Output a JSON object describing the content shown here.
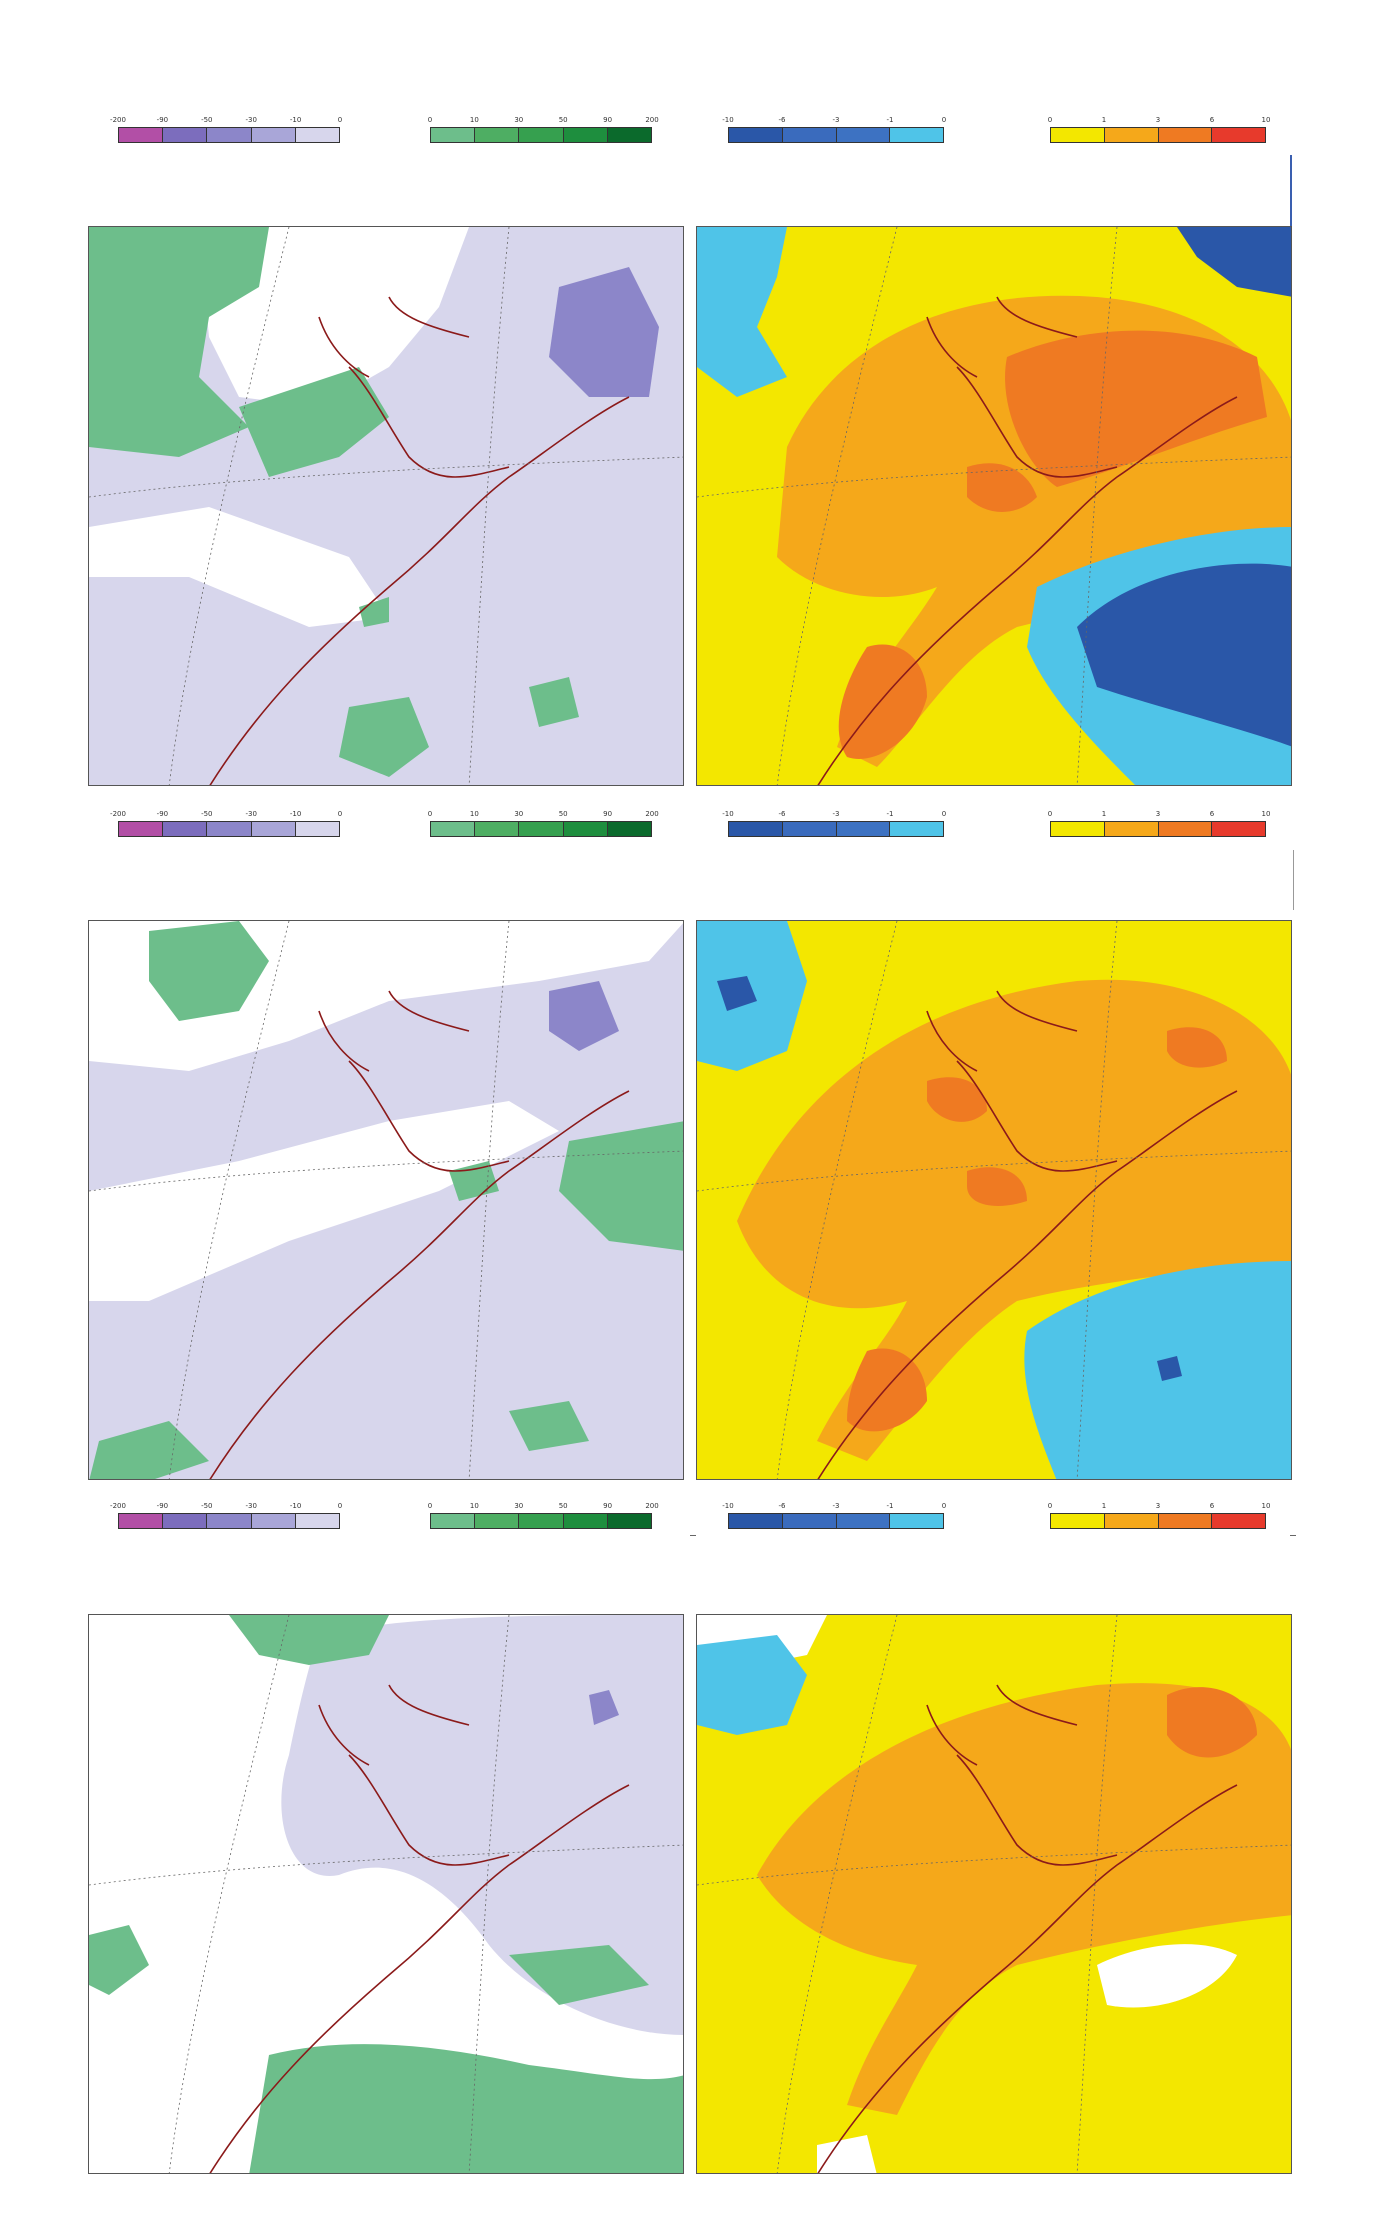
{
  "legends": {
    "precip_neg": {
      "ticks": [
        "-200",
        "-90",
        "-50",
        "-30",
        "-10",
        "0"
      ],
      "colors": [
        "#b24fa6",
        "#7c6dbd",
        "#8c86c9",
        "#a9a6d8",
        "#d7d6ec"
      ]
    },
    "precip_pos": {
      "ticks": [
        "0",
        "10",
        "30",
        "50",
        "90",
        "200"
      ],
      "colors": [
        "#6dbe8b",
        "#4eae63",
        "#36a04f",
        "#1e8e3e",
        "#0b6a2c"
      ]
    },
    "temp_neg": {
      "ticks": [
        "-10",
        "-6",
        "-3",
        "-1",
        "0"
      ],
      "colors": [
        "#2a57a8",
        "#3a6bbd",
        "#3d72c2",
        "#4fc4e8"
      ]
    },
    "temp_pos": {
      "ticks": [
        "0",
        "1",
        "3",
        "6",
        "10"
      ],
      "colors": [
        "#f3e700",
        "#f5a81a",
        "#ef7a22",
        "#e73a2c"
      ]
    }
  },
  "map_colors": {
    "precip_background": "#d7d6ec",
    "precip_dry": "#8c86c9",
    "precip_wet": "#6dbe8b",
    "temp_low": "#f3e700",
    "temp_mid": "#f5a81a",
    "temp_high": "#ef7a22",
    "temp_cold": "#4fc4e8",
    "temp_very_cold": "#2a57a8",
    "coastline": "#8b1a1a"
  }
}
